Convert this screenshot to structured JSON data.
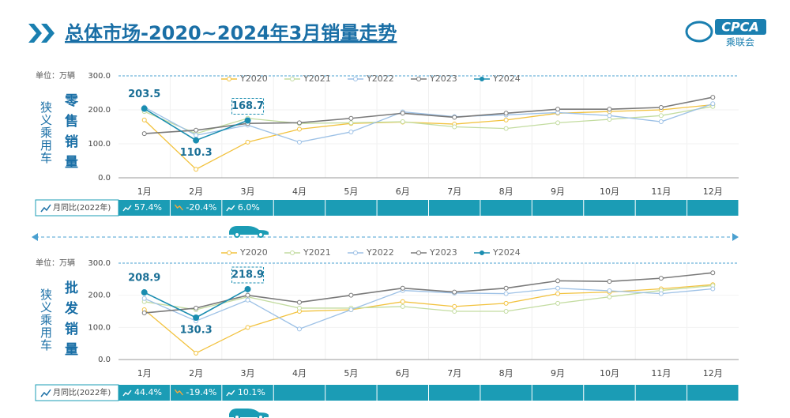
{
  "header": {
    "title": "总体市场-2020~2024年3月销量走势",
    "logo_text": "CPCA",
    "logo_subtext": "乘联会"
  },
  "chart_data": [
    {
      "type": "line",
      "title": "零售销量",
      "segment": "狭义乘用车",
      "unit": "单位：万辆",
      "categories": [
        "1月",
        "2月",
        "3月",
        "4月",
        "5月",
        "6月",
        "7月",
        "8月",
        "9月",
        "10月",
        "11月",
        "12月"
      ],
      "ylim": [
        0,
        300
      ],
      "yticks": [
        {
          "value": 0,
          "label": "0.0"
        },
        {
          "value": 100,
          "label": "100.0"
        },
        {
          "value": 200,
          "label": "200.0"
        },
        {
          "value": 300,
          "label": "300.0"
        }
      ],
      "series": [
        {
          "name": "Y2020",
          "color": "#f2c23e",
          "values": [
            170,
            25,
            105,
            143,
            160,
            164,
            158,
            170,
            190,
            195,
            200,
            215
          ]
        },
        {
          "name": "Y2021",
          "color": "#c3dca0",
          "values": [
            195,
            130,
            175,
            160,
            162,
            165,
            150,
            145,
            162,
            172,
            183,
            210
          ]
        },
        {
          "name": "Y2022",
          "color": "#9dc1e6",
          "values": [
            208,
            125,
            155,
            105,
            135,
            194,
            180,
            185,
            192,
            183,
            165,
            218
          ]
        },
        {
          "name": "Y2023",
          "color": "#7a7a7a",
          "values": [
            130,
            140,
            160,
            162,
            175,
            190,
            178,
            190,
            202,
            202,
            207,
            237
          ]
        },
        {
          "name": "Y2024",
          "color": "#1a8db0",
          "values": [
            203.5,
            110.3,
            168.7,
            null,
            null,
            null,
            null,
            null,
            null,
            null,
            null,
            null
          ]
        }
      ],
      "yoy": {
        "label": "月同比(2022年)",
        "values": [
          57.4,
          -20.4,
          6.0
        ],
        "value_labels": [
          "57.4%",
          "-20.4%",
          "6.0%"
        ]
      }
    },
    {
      "type": "line",
      "title": "批发销量",
      "segment": "狭义乘用车",
      "unit": "单位：万辆",
      "categories": [
        "1月",
        "2月",
        "3月",
        "4月",
        "5月",
        "6月",
        "7月",
        "8月",
        "9月",
        "10月",
        "11月",
        "12月"
      ],
      "ylim": [
        0,
        300
      ],
      "yticks": [
        {
          "value": 0,
          "label": "0.0"
        },
        {
          "value": 100,
          "label": "100.0"
        },
        {
          "value": 200,
          "label": "200.0"
        },
        {
          "value": 300,
          "label": "300.0"
        }
      ],
      "series": [
        {
          "name": "Y2020",
          "color": "#f2c23e",
          "values": [
            155,
            20,
            100,
            150,
            155,
            180,
            165,
            175,
            205,
            210,
            220,
            233
          ]
        },
        {
          "name": "Y2021",
          "color": "#c3dca0",
          "values": [
            180,
            155,
            195,
            160,
            160,
            165,
            150,
            150,
            175,
            195,
            215,
            230
          ]
        },
        {
          "name": "Y2022",
          "color": "#9dc1e6",
          "values": [
            190,
            120,
            185,
            95,
            155,
            215,
            207,
            205,
            222,
            214,
            205,
            220
          ]
        },
        {
          "name": "Y2023",
          "color": "#7a7a7a",
          "values": [
            145,
            160,
            200,
            178,
            200,
            222,
            210,
            222,
            245,
            243,
            253,
            270
          ]
        },
        {
          "name": "Y2024",
          "color": "#1a8db0",
          "values": [
            208.9,
            130.3,
            218.9,
            null,
            null,
            null,
            null,
            null,
            null,
            null,
            null,
            null
          ]
        }
      ],
      "yoy": {
        "label": "月同比(2022年)",
        "values": [
          44.4,
          -19.4,
          10.1
        ],
        "value_labels": [
          "44.4%",
          "-19.4%",
          "10.1%"
        ]
      }
    }
  ]
}
